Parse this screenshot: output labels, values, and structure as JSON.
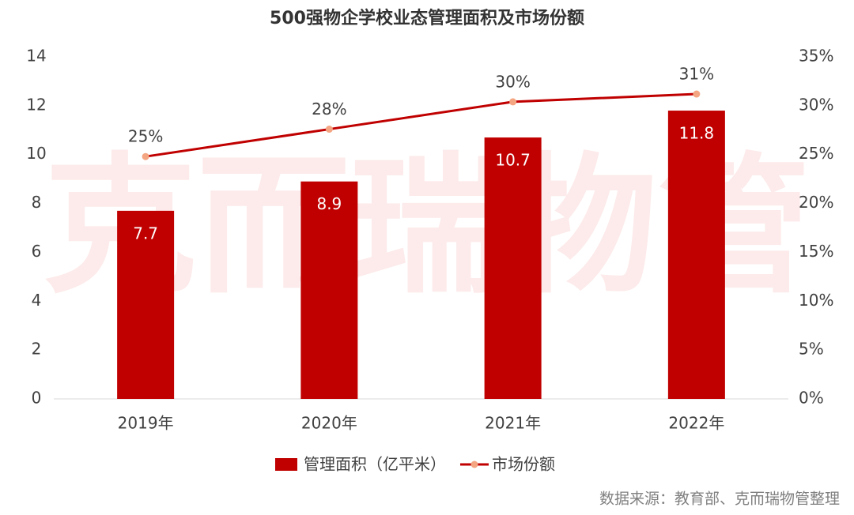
{
  "chart_data": {
    "type": "combo",
    "title": "500强物企学校业态管理面积及市场份额",
    "watermark": "克而瑞物管",
    "source": "数据来源：教育部、克而瑞物管整理",
    "categories": [
      "2019年",
      "2020年",
      "2021年",
      "2022年"
    ],
    "series": [
      {
        "name": "管理面积（亿平米）",
        "type": "bar",
        "color": "#c00000",
        "values": [
          7.7,
          8.9,
          10.7,
          11.8
        ]
      },
      {
        "name": "市场份额",
        "type": "line",
        "axis": "y2",
        "color": "#c00000",
        "marker_color": "#f4a582",
        "values": [
          24.8,
          27.6,
          30.4,
          31.2
        ],
        "value_labels": [
          "25%",
          "28%",
          "30%",
          "31%"
        ]
      }
    ],
    "ylim": [
      0,
      14
    ],
    "yticks": [
      0,
      2,
      4,
      6,
      8,
      10,
      12,
      14
    ],
    "y2lim": [
      0,
      35
    ],
    "y2ticks": [
      {
        "value": 0,
        "label": "0%"
      },
      {
        "value": 5,
        "label": "5%"
      },
      {
        "value": 10,
        "label": "10%"
      },
      {
        "value": 15,
        "label": "15%"
      },
      {
        "value": 20,
        "label": "20%"
      },
      {
        "value": 25,
        "label": "25%"
      },
      {
        "value": 30,
        "label": "30%"
      },
      {
        "value": 35,
        "label": "35%"
      }
    ],
    "grid": false
  }
}
